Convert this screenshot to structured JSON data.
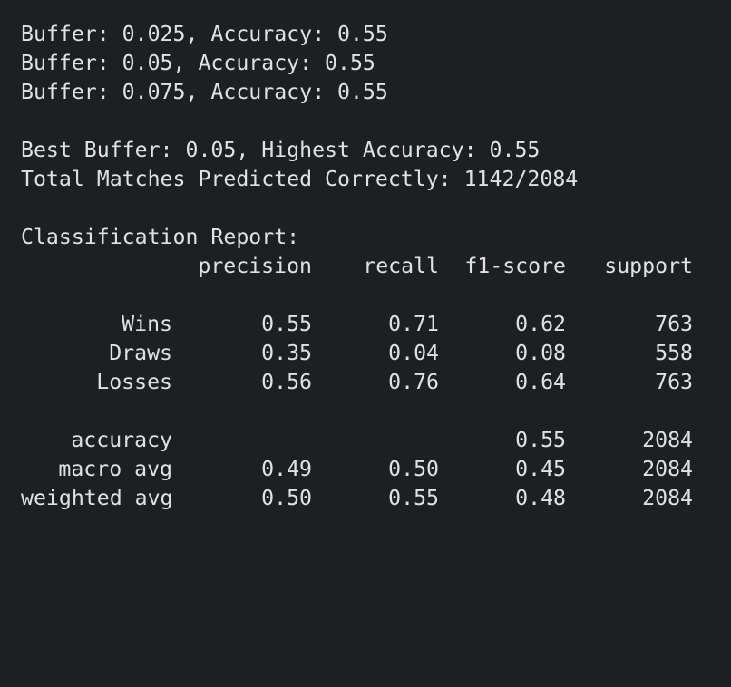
{
  "log": {
    "buffer_lines": [
      "Buffer: 0.025, Accuracy: 0.55",
      "Buffer: 0.05, Accuracy: 0.55",
      "Buffer: 0.075, Accuracy: 0.55"
    ],
    "best_line": "Best Buffer: 0.05, Highest Accuracy: 0.55",
    "total_line": "Total Matches Predicted Correctly: 1142/2084"
  },
  "report": {
    "title": "Classification Report:",
    "headers": [
      "precision",
      "recall",
      "f1-score",
      "support"
    ],
    "class_rows": [
      {
        "label": "Wins",
        "precision": "0.55",
        "recall": "0.71",
        "f1": "0.62",
        "support": "763"
      },
      {
        "label": "Draws",
        "precision": "0.35",
        "recall": "0.04",
        "f1": "0.08",
        "support": "558"
      },
      {
        "label": "Losses",
        "precision": "0.56",
        "recall": "0.76",
        "f1": "0.64",
        "support": "763"
      }
    ],
    "summary_rows": [
      {
        "label": "accuracy",
        "precision": "",
        "recall": "",
        "f1": "0.55",
        "support": "2084"
      },
      {
        "label": "macro avg",
        "precision": "0.49",
        "recall": "0.50",
        "f1": "0.45",
        "support": "2084"
      },
      {
        "label": "weighted avg",
        "precision": "0.50",
        "recall": "0.55",
        "f1": "0.48",
        "support": "2084"
      }
    ]
  },
  "colors": {
    "background": "#1e1f22",
    "text": "#dfe1e5"
  }
}
